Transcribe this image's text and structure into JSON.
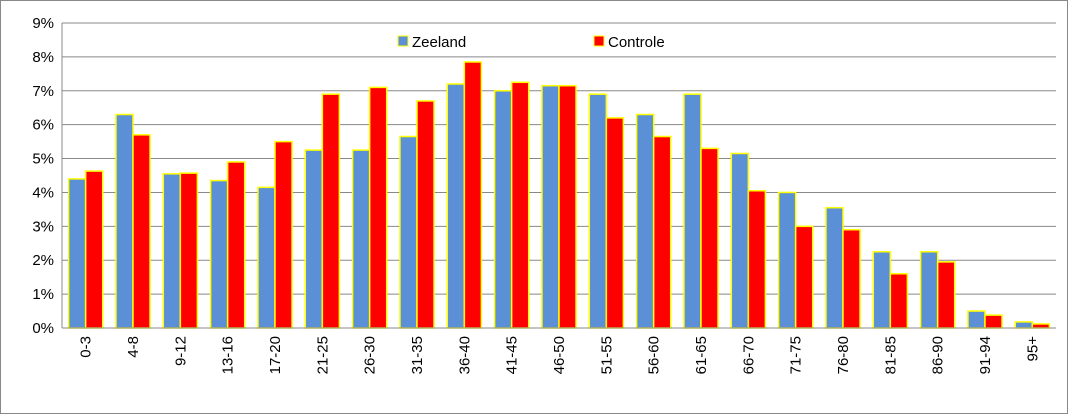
{
  "chart_data": {
    "type": "bar",
    "categories": [
      "0-3",
      "4-8",
      "9-12",
      "13-16",
      "17-20",
      "21-25",
      "26-30",
      "31-35",
      "36-40",
      "41-45",
      "46-50",
      "51-55",
      "56-60",
      "61-65",
      "66-70",
      "71-75",
      "76-80",
      "81-85",
      "86-90",
      "91-94",
      "95+"
    ],
    "series": [
      {
        "name": "Zeeland",
        "color": "#5b8fd6",
        "values": [
          4.4,
          6.3,
          4.55,
          4.35,
          4.15,
          5.25,
          5.25,
          5.65,
          7.2,
          7.0,
          7.15,
          6.9,
          6.3,
          6.9,
          5.15,
          4.0,
          3.55,
          2.25,
          2.25,
          0.5,
          0.18
        ]
      },
      {
        "name": "Controle",
        "color": "#ff0000",
        "values": [
          4.63,
          5.7,
          4.57,
          4.9,
          5.5,
          6.9,
          7.1,
          6.7,
          7.85,
          7.25,
          7.15,
          6.2,
          5.65,
          5.3,
          4.05,
          3.0,
          2.9,
          1.6,
          1.95,
          0.38,
          0.12
        ]
      }
    ],
    "ylim": [
      0,
      9
    ],
    "yticks": [
      {
        "value": 0,
        "label": "0%"
      },
      {
        "value": 1,
        "label": "1%"
      },
      {
        "value": 2,
        "label": "2%"
      },
      {
        "value": 3,
        "label": "3%"
      },
      {
        "value": 4,
        "label": "4%"
      },
      {
        "value": 5,
        "label": "5%"
      },
      {
        "value": 6,
        "label": "6%"
      },
      {
        "value": 7,
        "label": "7%"
      },
      {
        "value": 8,
        "label": "8%"
      },
      {
        "value": 9,
        "label": "9%"
      }
    ],
    "grid": true,
    "legend": "top",
    "bar_edge_color": "#ffff00"
  }
}
